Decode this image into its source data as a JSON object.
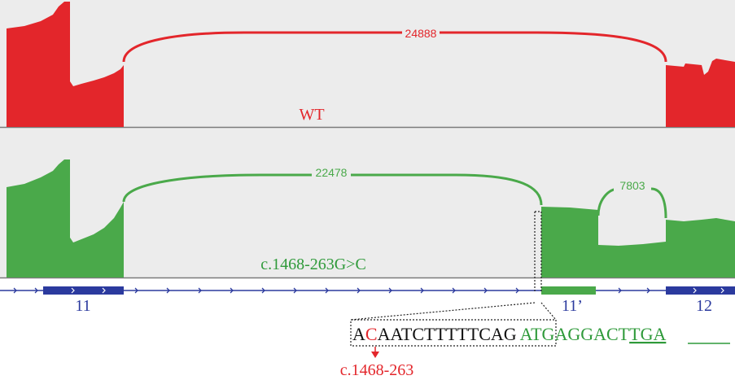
{
  "colors": {
    "wt": "#e3262b",
    "mut": "#4aa94a",
    "mut_text": "#2f9a3a",
    "gene": "#2b3a9e",
    "track_bg": "#ececec",
    "divider": "#7a7a7a",
    "seq_black": "#111111"
  },
  "tracks": {
    "wt": {
      "label": "WT",
      "junction_label": "24888"
    },
    "mut": {
      "label": "c.1468-263G>C",
      "junction_label_main": "22478",
      "junction_label_cryptic": "7803"
    }
  },
  "gene_track": {
    "exon_labels": [
      "11",
      "11’",
      "12"
    ]
  },
  "sequence": {
    "intron_first": "A",
    "mutated_base": "C",
    "intron_rest": "AATCTTTTTCAG",
    "exon_part": "ATGAGGACT",
    "stop_codon": "TGA"
  },
  "mutation_position_label": "c.1468-263"
}
